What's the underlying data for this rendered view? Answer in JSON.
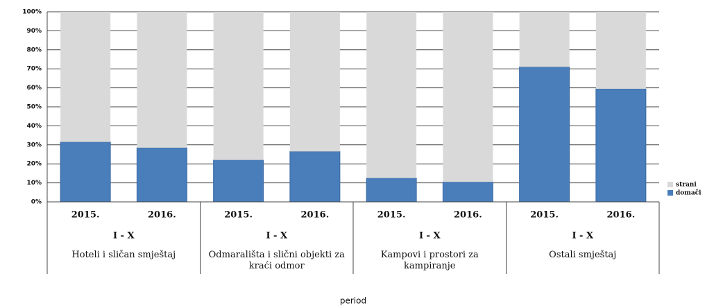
{
  "chart_data": {
    "type": "stacked_bar_100",
    "x_label": "period",
    "categories": [
      "2015.",
      "2016.",
      "2015.",
      "2016.",
      "2015.",
      "2016.",
      "2015.",
      "2016."
    ],
    "category_groups": [
      {
        "period": "I - X",
        "name": "Hoteli i sličan smještaj"
      },
      {
        "period": "I - X",
        "name": "Odmarališta i slični objekti za kraći odmor"
      },
      {
        "period": "I - X",
        "name": "Kampovi i prostori za kampiranje"
      },
      {
        "period": "I - X",
        "name": "Ostali smještaj"
      }
    ],
    "series": [
      {
        "name": "domači",
        "color": "#4a7ebb",
        "values": [
          31.5,
          28.5,
          22,
          26.5,
          12.5,
          10.5,
          71,
          59.5
        ]
      },
      {
        "name": "strani",
        "color": "#d9d9d9",
        "values": [
          68.5,
          71.5,
          78,
          73.5,
          87.5,
          89.5,
          29,
          40.5
        ]
      }
    ],
    "ylim": [
      0,
      100
    ],
    "yticks": [
      {
        "value": 0,
        "label": "0%"
      },
      {
        "value": 10,
        "label": "10%"
      },
      {
        "value": 20,
        "label": "20%"
      },
      {
        "value": 30,
        "label": "30%"
      },
      {
        "value": 40,
        "label": "40%"
      },
      {
        "value": 50,
        "label": "50%"
      },
      {
        "value": 60,
        "label": "60%"
      },
      {
        "value": 70,
        "label": "70%"
      },
      {
        "value": 80,
        "label": "80%"
      },
      {
        "value": 90,
        "label": "90%"
      },
      {
        "value": 100,
        "label": "100%"
      }
    ],
    "grid": true,
    "legend": "right"
  }
}
